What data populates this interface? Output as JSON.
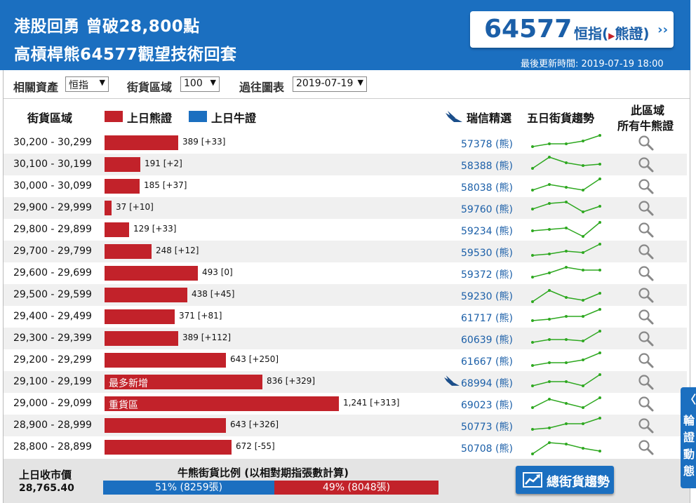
{
  "header": {
    "title_line1": "港股回勇 曾破28,800點",
    "title_line2": "高槓桿熊64577觀望技術回套",
    "product_code": "64577",
    "product_name_pre": "恒指(",
    "product_name_post": "熊證)",
    "update_time": "最後更新時間: 2019-07-19 18:00"
  },
  "filters": {
    "asset_label": "相關資產",
    "asset_value": "恒指",
    "range_label": "街貨區域",
    "range_value": "100",
    "history_label": "過往圖表",
    "history_value": "2019-07-19"
  },
  "columns": {
    "range": "街貨區域",
    "bear_legend": "上日熊證",
    "bull_legend": "上日牛證",
    "ubs": "瑞信精選",
    "trend": "五日街貨趨勢",
    "all_line1": "此區域",
    "all_line2": "所有牛熊證"
  },
  "colors": {
    "bear": "#c2222a",
    "bull": "#1b6fc0",
    "spark": "#2ea820"
  },
  "rows": [
    {
      "range": "30,200 - 30,299",
      "value": 389,
      "label": "389 [+33]",
      "code": "57378 (熊)",
      "trend": [
        1,
        2,
        2,
        3,
        5
      ]
    },
    {
      "range": "30,100 - 30,199",
      "value": 191,
      "label": "191 [+2]",
      "code": "58388 (熊)",
      "trend": [
        1,
        5,
        3,
        2,
        2.5
      ]
    },
    {
      "range": "30,000 - 30,099",
      "value": 185,
      "label": "185 [+37]",
      "code": "58038 (熊)",
      "trend": [
        1,
        3,
        2,
        1,
        5
      ]
    },
    {
      "range": "29,900 - 29,999",
      "value": 37,
      "label": "37 [+10]",
      "code": "59760 (熊)",
      "trend": [
        2,
        4,
        4.5,
        1,
        3
      ]
    },
    {
      "range": "29,800 - 29,899",
      "value": 129,
      "label": "129 [+33]",
      "code": "59234 (熊)",
      "trend": [
        2,
        2.5,
        3,
        0,
        5
      ]
    },
    {
      "range": "29,700 - 29,799",
      "value": 248,
      "label": "248 [+12]",
      "code": "59530 (熊)",
      "trend": [
        1,
        1.5,
        2.5,
        2,
        5
      ]
    },
    {
      "range": "29,600 - 29,699",
      "value": 493,
      "label": "493 [0]",
      "code": "59372 (熊)",
      "trend": [
        1,
        2.5,
        4.5,
        3.5,
        3.5
      ]
    },
    {
      "range": "29,500 - 29,599",
      "value": 438,
      "label": "438 [+45]",
      "code": "59230 (熊)",
      "trend": [
        0,
        4,
        1.5,
        0.5,
        3
      ]
    },
    {
      "range": "29,400 - 29,499",
      "value": 371,
      "label": "371 [+81]",
      "code": "61717 (熊)",
      "trend": [
        1,
        1.5,
        2.5,
        2.5,
        5
      ]
    },
    {
      "range": "29,300 - 29,399",
      "value": 389,
      "label": "389 [+112]",
      "code": "60639 (熊)",
      "trend": [
        1,
        2,
        2,
        1.5,
        5
      ]
    },
    {
      "range": "29,200 - 29,299",
      "value": 643,
      "label": "643 [+250]",
      "code": "61667 (熊)",
      "trend": [
        0.5,
        1.5,
        1.5,
        2.5,
        5
      ]
    },
    {
      "range": "29,100 - 29,199",
      "value": 836,
      "label": "836 [+329]",
      "code": "68994 (熊)",
      "inner": "最多新增",
      "ubs": true,
      "trend": [
        1,
        2.5,
        2.5,
        1,
        5
      ]
    },
    {
      "range": "29,000 - 29,099",
      "value": 1241,
      "label": "1,241 [+313]",
      "code": "69023 (熊)",
      "inner": "重貨區",
      "trend": [
        1,
        4,
        2.5,
        1,
        4.5
      ]
    },
    {
      "range": "28,900 - 28,999",
      "value": 643,
      "label": "643 [+326]",
      "code": "50773 (熊)",
      "trend": [
        1,
        1.5,
        3,
        3,
        5
      ]
    },
    {
      "range": "28,800 - 28,899",
      "value": 672,
      "label": "672 [-55]",
      "code": "50708 (熊)",
      "trend": [
        0,
        4,
        3.5,
        2,
        1
      ]
    }
  ],
  "footer": {
    "close_label": "上日收市價",
    "close_value": "28,765.40",
    "ratio_title": "牛熊街貨比例 (以相對期指張數計算)",
    "bull_pct": 51,
    "bull_label": "51% (8259張)",
    "bear_pct": 49,
    "bear_label": "49% (8048張)",
    "trend_button": "總街貨趨勢"
  },
  "side_tab": {
    "text": "輪證動態"
  }
}
